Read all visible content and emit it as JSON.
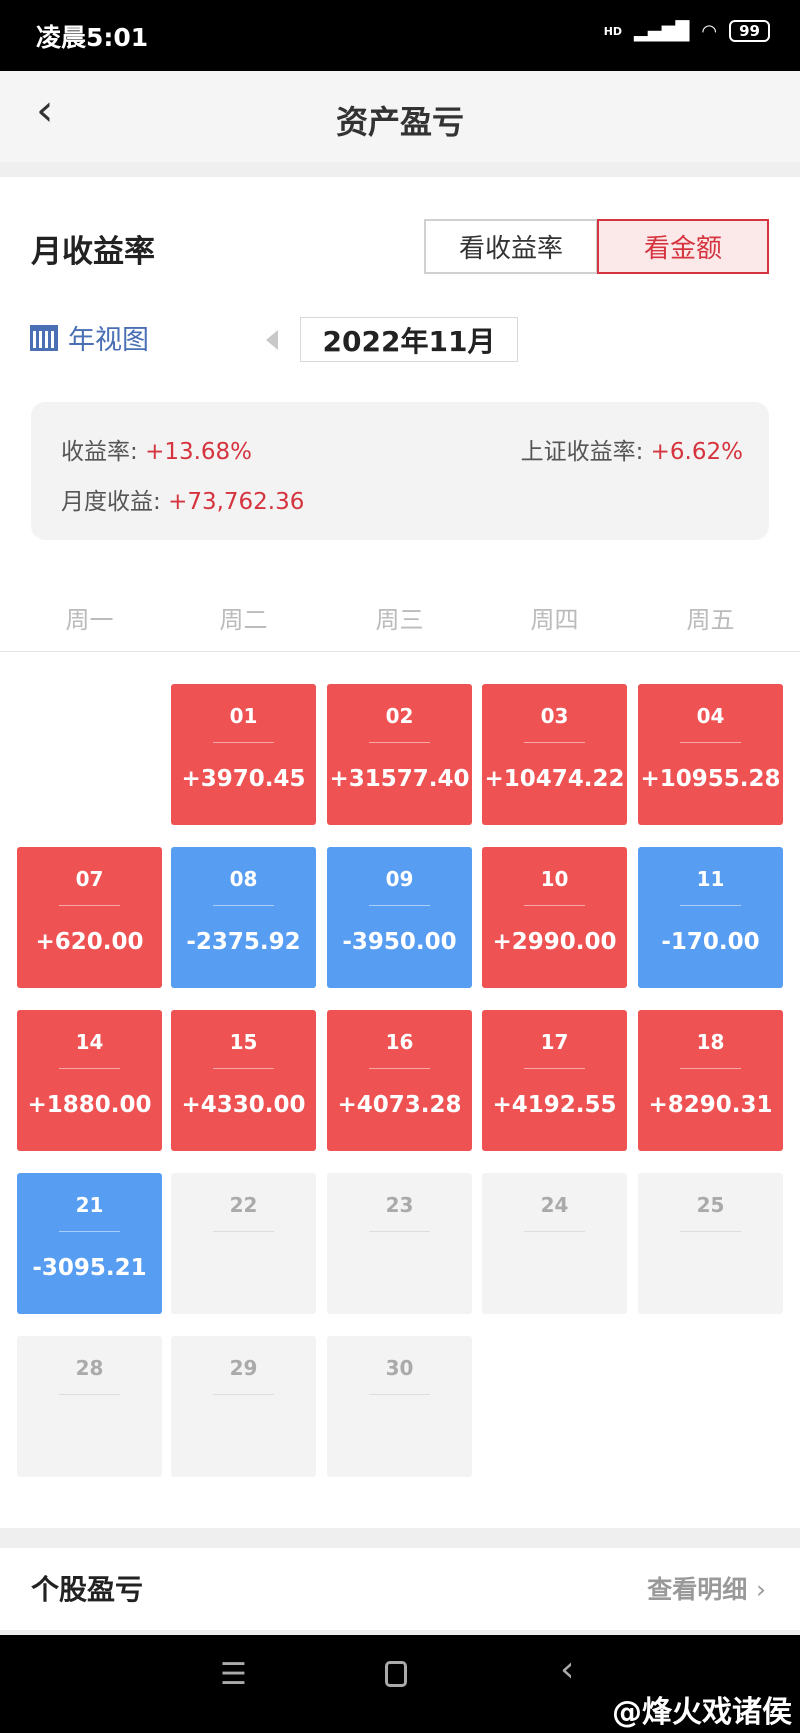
{
  "status": {
    "time": "凌晨5:01",
    "network": "HD",
    "battery": "99"
  },
  "header": {
    "title": "资产盈亏",
    "back_icon": "chevron-left-icon"
  },
  "section": {
    "title": "月收益率",
    "toggle": [
      "看收益率",
      "看金额"
    ],
    "active_toggle": "看金额"
  },
  "view": {
    "year_view": "年视图",
    "month": "2022年11月"
  },
  "summary": {
    "rate_label": "收益率:",
    "rate": "+13.68%",
    "sh_label": "上证收益率:",
    "sh_rate": "+6.62%",
    "month_label": "月度收益:",
    "month_value": "+73,762.36"
  },
  "weekdays": [
    "周一",
    "周二",
    "周三",
    "周四",
    "周五"
  ],
  "days": [
    {
      "day": "01",
      "value": "+3970.45",
      "type": "gain"
    },
    {
      "day": "02",
      "value": "+31577.40",
      "type": "gain"
    },
    {
      "day": "03",
      "value": "+10474.22",
      "type": "gain"
    },
    {
      "day": "04",
      "value": "+10955.28",
      "type": "gain"
    },
    {
      "day": "07",
      "value": "+620.00",
      "type": "gain"
    },
    {
      "day": "08",
      "value": "-2375.92",
      "type": "loss"
    },
    {
      "day": "09",
      "value": "-3950.00",
      "type": "loss"
    },
    {
      "day": "10",
      "value": "+2990.00",
      "type": "gain"
    },
    {
      "day": "11",
      "value": "-170.00",
      "type": "loss"
    },
    {
      "day": "14",
      "value": "+1880.00",
      "type": "gain"
    },
    {
      "day": "15",
      "value": "+4330.00",
      "type": "gain"
    },
    {
      "day": "16",
      "value": "+4073.28",
      "type": "gain"
    },
    {
      "day": "17",
      "value": "+4192.55",
      "type": "gain"
    },
    {
      "day": "18",
      "value": "+8290.31",
      "type": "gain"
    },
    {
      "day": "21",
      "value": "-3095.21",
      "type": "loss"
    },
    {
      "day": "22",
      "value": "",
      "type": "none"
    },
    {
      "day": "23",
      "value": "",
      "type": "none"
    },
    {
      "day": "24",
      "value": "",
      "type": "none"
    },
    {
      "day": "25",
      "value": "",
      "type": "none"
    },
    {
      "day": "28",
      "value": "",
      "type": "none"
    },
    {
      "day": "29",
      "value": "",
      "type": "none"
    },
    {
      "day": "30",
      "value": "",
      "type": "none"
    }
  ],
  "stocks": {
    "title": "个股盈亏",
    "detail": "查看明细"
  },
  "watermark": "@烽火戏诸侯",
  "colors": {
    "gain": "#ee5253",
    "loss": "#579df2",
    "accent": "#d5343f"
  }
}
